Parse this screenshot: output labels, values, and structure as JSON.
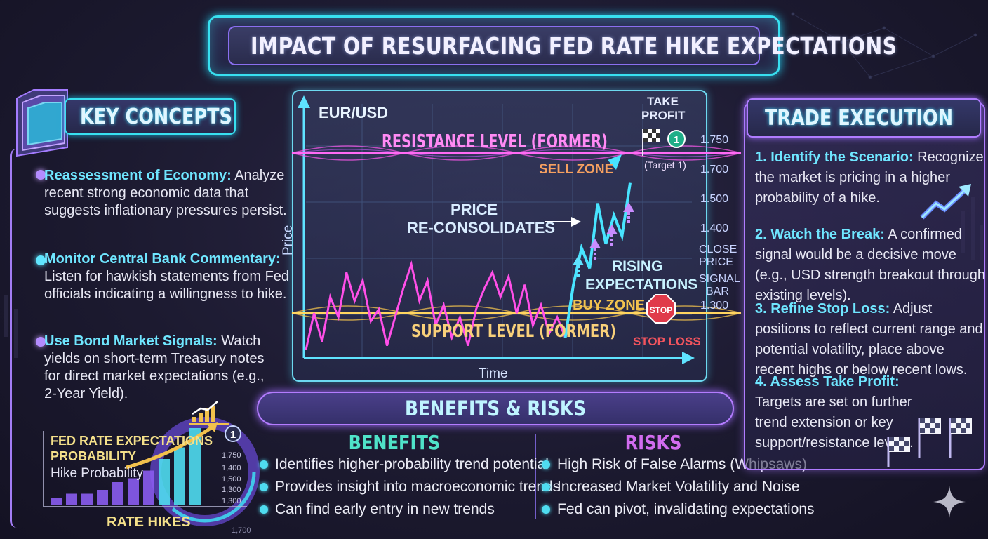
{
  "title": "IMPACT OF RESURFACING FED RATE HIKE EXPECTATIONS",
  "key_concepts": {
    "header": "KEY CONCEPTS",
    "items": [
      {
        "heading": "Reassessment of Economy:",
        "text": " Analyze recent strong economic data that suggests inflationary pressures persist."
      },
      {
        "heading": "Monitor Central Bank Commentary:",
        "text": " Listen for hawkish statements from Fed officials indicating a willingness to hike."
      },
      {
        "heading": "Use Bond Market Signals:",
        "text": " Watch yields on short-term Treasury notes for direct market expectations (e.g., 2-Year Yield)."
      }
    ]
  },
  "mini_chart": {
    "title_line1": "FED RATE EXPECTATIONS",
    "title_line2": "PROBABILITY",
    "subtitle": "Hike Probability",
    "footer": "RATE HIKES",
    "badge": "1",
    "scale": [
      "1,750",
      "1,400",
      "1,500",
      "1,300",
      "1,300"
    ],
    "bottom_value": "1,700",
    "bars": [
      2,
      3,
      3,
      4,
      6,
      7,
      9,
      12,
      15,
      20
    ]
  },
  "chart": {
    "pair": "EUR/USD",
    "y_label": "Price",
    "x_label": "Time",
    "resistance": "RESISTANCE LEVEL (FORMER)",
    "support": "SUPPORT LEVEL (FORMER)",
    "sell_zone": "SELL ZONE",
    "buy_zone": "BUY ZONE",
    "price_note_line1": "PRICE",
    "price_note_line2": "RE-CONSOLIDATES",
    "rising_line1": "RISING",
    "rising_line2": "EXPECTATIONS",
    "take_profit_line1": "TAKE",
    "take_profit_line2": "PROFIT",
    "target_badge": "1",
    "target": "(Target 1)",
    "stop_sign": "STOP",
    "stop_loss": "STOP LOSS",
    "close_price_line1": "CLOSE",
    "close_price_line2": "PRICE",
    "signal_bar_line1": "SIGNAL",
    "signal_bar_line2": "BAR",
    "ticks": [
      "1.750",
      "1.700",
      "1.500",
      "1.400",
      "1.300"
    ]
  },
  "chart_data": {
    "type": "line",
    "title": "EUR/USD",
    "xlabel": "Time",
    "ylabel": "Price",
    "y_ticks": [
      "1.750",
      "1.700",
      "1.500",
      "1.400",
      "1.300"
    ],
    "price_path_norm": [
      0.04,
      0.22,
      0.08,
      0.3,
      0.2,
      0.42,
      0.28,
      0.38,
      0.18,
      0.24,
      0.06,
      0.2,
      0.34,
      0.46,
      0.28,
      0.38,
      0.16,
      0.26,
      0.1,
      0.2,
      0.06,
      0.24,
      0.34,
      0.42,
      0.3,
      0.4,
      0.22,
      0.36,
      0.16,
      0.26,
      0.12,
      0.2,
      0.1,
      0.36,
      0.54,
      0.44,
      0.76,
      0.56,
      0.7,
      0.6,
      0.86
    ],
    "annotations": [
      "RESISTANCE LEVEL (FORMER)",
      "SUPPORT LEVEL (FORMER)",
      "SELL ZONE",
      "BUY ZONE"
    ]
  },
  "benefits_risks": {
    "header": "BENEFITS & RISKS",
    "benefits_title": "BENEFITS",
    "risks_title": "RISKS",
    "benefits": [
      "Identifies higher-probability trend potential",
      "Provides insight into macroeconomic trends",
      "Can find early entry in new trends"
    ],
    "risks": [
      "High Risk of False Alarms (Whipsaws)",
      "Increased Market Volatility and Noise",
      "Fed can pivot, invalidating expectations"
    ]
  },
  "trade_execution": {
    "header": "TRADE EXECUTION",
    "steps": [
      {
        "heading": "1. Identify the Scenario:",
        "text": " Recognize the market is pricing in a higher probability of a hike."
      },
      {
        "heading": "2. Watch the Break:",
        "text": " A confirmed signal would be a decisive move (e.g., USD strength breakout through existing levels)."
      },
      {
        "heading": "3. Refine Stop Loss:",
        "text": " Adjust positions to reflect current range and potential volatility, place above recent highs or below recent lows."
      },
      {
        "heading": "4. Assess Take Profit:",
        "text": " Targets are set on further trend extension or key support/resistance levels."
      }
    ]
  },
  "colors": {
    "cyan": "#38e0f0",
    "purple": "#a37df5",
    "magenta": "#ff5cf0",
    "gold": "#f3c34e",
    "stop_red": "#e03a4a"
  }
}
